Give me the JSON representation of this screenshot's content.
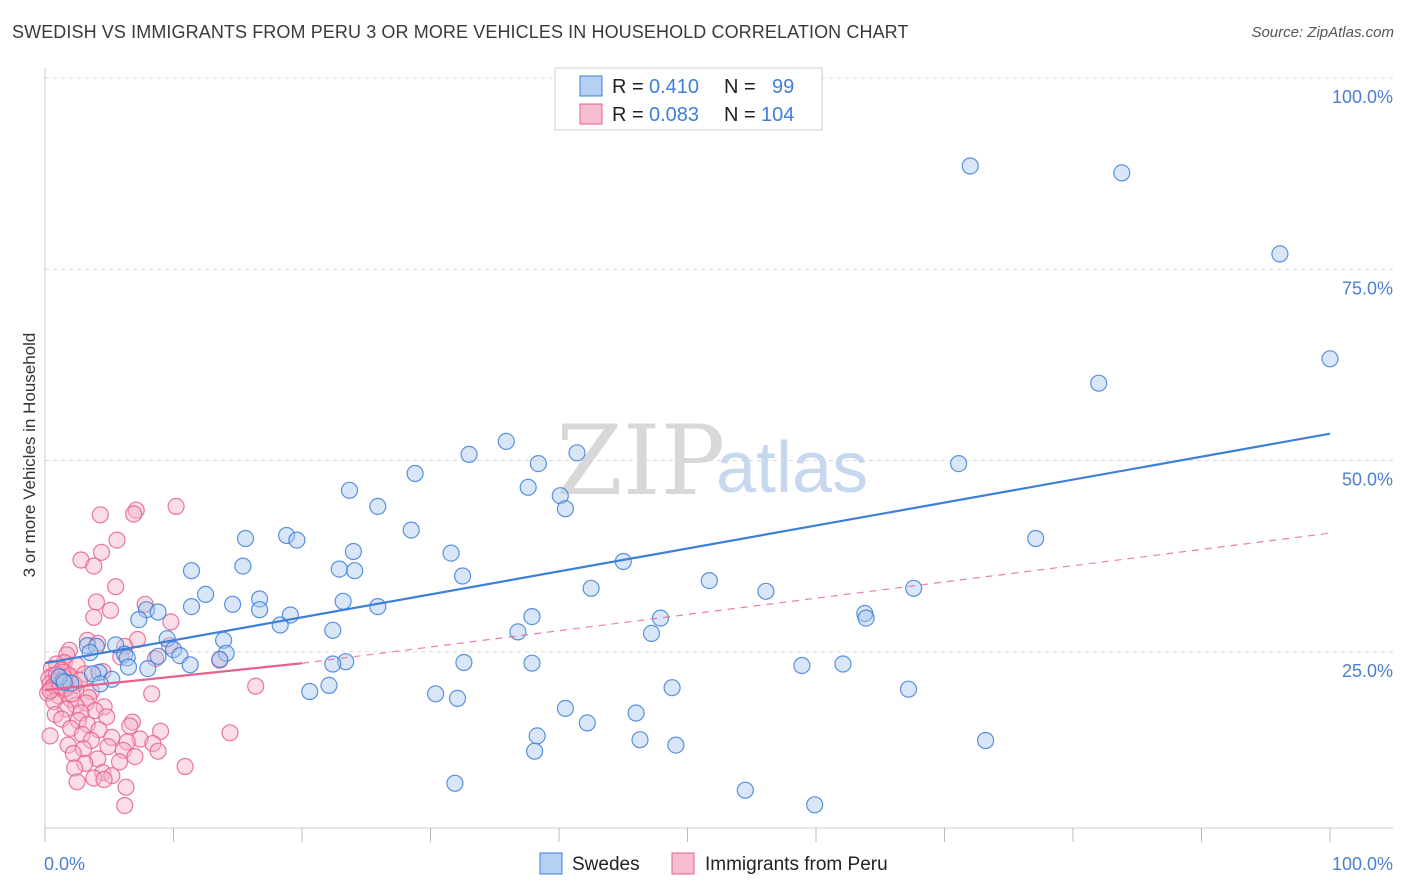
{
  "title": "SWEDISH VS IMMIGRANTS FROM PERU 3 OR MORE VEHICLES IN HOUSEHOLD CORRELATION CHART",
  "source": "Source: ZipAtlas.com",
  "watermark": {
    "zip": "ZIP",
    "atlas": "atlas"
  },
  "colors": {
    "blue": "#3d7fd9",
    "blue_fill": "#a9c8ee",
    "pink": "#e8608c",
    "pink_fill": "#f4b3c8",
    "grid": "#d9d9d9"
  },
  "legend": {
    "rows": [
      {
        "r_label": "R =",
        "r_value": "0.410",
        "n_label": "N =",
        "n_value": "99"
      },
      {
        "r_label": "R =",
        "r_value": "0.083",
        "n_label": "N =",
        "n_value": "104"
      }
    ]
  },
  "bottom_legend": [
    "Swedes",
    "Immigrants from Peru"
  ],
  "chart_data": {
    "type": "scatter",
    "xlabel": "",
    "ylabel": "3 or more Vehicles in Household",
    "xlim": [
      0,
      100
    ],
    "ylim": [
      0,
      100
    ],
    "x_tick_labels": [
      "0.0%",
      "100.0%"
    ],
    "y_tick_labels": [
      "25.0%",
      "50.0%",
      "75.0%",
      "100.0%"
    ],
    "y_ticks": [
      25,
      50,
      75,
      100
    ],
    "series": [
      {
        "name": "Swedes",
        "color": "#3d7fd9",
        "trend": {
          "x": [
            0,
            100
          ],
          "y": [
            23.5,
            53.5
          ],
          "style": "solid"
        },
        "points": [
          [
            72.0,
            88.5
          ],
          [
            83.8,
            87.6
          ],
          [
            96.1,
            77.0
          ],
          [
            100,
            63.3
          ],
          [
            82.0,
            60.1
          ],
          [
            35.9,
            52.5
          ],
          [
            33.0,
            50.8
          ],
          [
            41.4,
            51.0
          ],
          [
            38.4,
            49.6
          ],
          [
            71.1,
            49.6
          ],
          [
            28.8,
            48.3
          ],
          [
            37.6,
            46.5
          ],
          [
            23.7,
            46.1
          ],
          [
            40.1,
            45.4
          ],
          [
            25.9,
            44.0
          ],
          [
            40.5,
            43.7
          ],
          [
            28.5,
            40.9
          ],
          [
            18.8,
            40.2
          ],
          [
            19.6,
            39.6
          ],
          [
            24.0,
            38.1
          ],
          [
            77.1,
            39.8
          ],
          [
            15.6,
            39.8
          ],
          [
            31.6,
            37.9
          ],
          [
            45.0,
            36.8
          ],
          [
            15.4,
            36.2
          ],
          [
            22.9,
            35.8
          ],
          [
            11.4,
            35.6
          ],
          [
            24.1,
            35.6
          ],
          [
            32.5,
            34.9
          ],
          [
            51.7,
            34.3
          ],
          [
            67.6,
            33.3
          ],
          [
            42.5,
            33.3
          ],
          [
            56.1,
            32.9
          ],
          [
            12.5,
            32.5
          ],
          [
            16.7,
            31.9
          ],
          [
            23.2,
            31.6
          ],
          [
            14.6,
            31.2
          ],
          [
            25.9,
            30.9
          ],
          [
            11.4,
            30.9
          ],
          [
            16.7,
            30.5
          ],
          [
            7.9,
            30.5
          ],
          [
            8.8,
            30.2
          ],
          [
            19.1,
            29.8
          ],
          [
            63.8,
            30.0
          ],
          [
            63.9,
            29.4
          ],
          [
            37.9,
            29.6
          ],
          [
            47.9,
            29.4
          ],
          [
            7.3,
            29.2
          ],
          [
            18.3,
            28.5
          ],
          [
            22.4,
            27.8
          ],
          [
            36.8,
            27.6
          ],
          [
            47.2,
            27.4
          ],
          [
            13.9,
            26.5
          ],
          [
            9.5,
            26.7
          ],
          [
            5.5,
            25.9
          ],
          [
            3.3,
            25.8
          ],
          [
            4.0,
            25.7
          ],
          [
            10.0,
            25.3
          ],
          [
            3.5,
            24.9
          ],
          [
            14.1,
            24.8
          ],
          [
            6.2,
            24.7
          ],
          [
            10.5,
            24.5
          ],
          [
            8.8,
            24.4
          ],
          [
            6.4,
            24.2
          ],
          [
            13.6,
            24.0
          ],
          [
            23.4,
            23.7
          ],
          [
            22.4,
            23.4
          ],
          [
            32.6,
            23.6
          ],
          [
            37.9,
            23.5
          ],
          [
            11.3,
            23.3
          ],
          [
            62.1,
            23.4
          ],
          [
            58.9,
            23.2
          ],
          [
            6.5,
            23.0
          ],
          [
            8.0,
            22.8
          ],
          [
            4.2,
            22.3
          ],
          [
            1.4,
            21.2
          ],
          [
            2.0,
            20.9
          ],
          [
            3.7,
            22.1
          ],
          [
            1.1,
            21.7
          ],
          [
            1.5,
            21.0
          ],
          [
            5.2,
            21.4
          ],
          [
            4.3,
            20.8
          ],
          [
            22.1,
            20.6
          ],
          [
            48.8,
            20.3
          ],
          [
            67.2,
            20.1
          ],
          [
            20.6,
            19.8
          ],
          [
            30.4,
            19.5
          ],
          [
            32.1,
            18.9
          ],
          [
            40.5,
            17.6
          ],
          [
            46.0,
            17.0
          ],
          [
            42.2,
            15.7
          ],
          [
            38.3,
            14.0
          ],
          [
            46.3,
            13.5
          ],
          [
            49.1,
            12.8
          ],
          [
            73.2,
            13.4
          ],
          [
            38.1,
            12.0
          ],
          [
            31.9,
            7.8
          ],
          [
            59.9,
            5.0
          ],
          [
            54.5,
            6.9
          ]
        ]
      },
      {
        "name": "Immigrants from Peru",
        "color": "#e8608c",
        "trend": {
          "x": [
            0,
            20
          ],
          "y": [
            20.0,
            23.5
          ],
          "style": "solid"
        },
        "trend_extension": {
          "x": [
            20,
            100
          ],
          "y": [
            23.5,
            40.5
          ],
          "style": "dashed"
        },
        "points": [
          [
            10.2,
            44.0
          ],
          [
            7.1,
            43.5
          ],
          [
            6.9,
            43.0
          ],
          [
            4.3,
            42.9
          ],
          [
            5.6,
            39.6
          ],
          [
            4.4,
            38.0
          ],
          [
            2.8,
            37.0
          ],
          [
            3.8,
            36.2
          ],
          [
            5.5,
            33.5
          ],
          [
            4.0,
            31.5
          ],
          [
            7.8,
            31.2
          ],
          [
            5.1,
            30.4
          ],
          [
            3.8,
            29.5
          ],
          [
            9.8,
            28.9
          ],
          [
            3.3,
            26.5
          ],
          [
            7.2,
            26.6
          ],
          [
            4.1,
            26.1
          ],
          [
            9.7,
            25.8
          ],
          [
            6.2,
            25.7
          ],
          [
            1.9,
            25.2
          ],
          [
            1.7,
            24.6
          ],
          [
            5.9,
            24.3
          ],
          [
            8.6,
            24.1
          ],
          [
            13.6,
            23.9
          ],
          [
            1.5,
            23.6
          ],
          [
            0.9,
            23.4
          ],
          [
            2.5,
            23.2
          ],
          [
            0.5,
            22.8
          ],
          [
            1.3,
            22.6
          ],
          [
            4.5,
            22.4
          ],
          [
            3.1,
            22.1
          ],
          [
            0.6,
            21.9
          ],
          [
            1.9,
            21.7
          ],
          [
            0.3,
            21.5
          ],
          [
            1.0,
            21.3
          ],
          [
            1.7,
            21.0
          ],
          [
            0.4,
            20.8
          ],
          [
            2.3,
            20.6
          ],
          [
            0.9,
            20.4
          ],
          [
            0.5,
            20.2
          ],
          [
            1.4,
            20.0
          ],
          [
            3.6,
            19.8
          ],
          [
            0.2,
            19.6
          ],
          [
            8.3,
            19.5
          ],
          [
            16.4,
            20.5
          ],
          [
            1.1,
            19.2
          ],
          [
            3.4,
            19.0
          ],
          [
            2.0,
            18.8
          ],
          [
            0.7,
            18.5
          ],
          [
            3.2,
            18.3
          ],
          [
            2.4,
            18.0
          ],
          [
            4.6,
            17.8
          ],
          [
            1.6,
            17.5
          ],
          [
            3.9,
            17.3
          ],
          [
            2.8,
            17.0
          ],
          [
            0.8,
            16.8
          ],
          [
            4.8,
            16.5
          ],
          [
            1.3,
            16.2
          ],
          [
            2.6,
            16.0
          ],
          [
            6.8,
            15.8
          ],
          [
            3.3,
            15.5
          ],
          [
            6.6,
            15.3
          ],
          [
            2.0,
            15.0
          ],
          [
            4.2,
            14.8
          ],
          [
            9.0,
            14.6
          ],
          [
            14.4,
            14.4
          ],
          [
            2.9,
            14.2
          ],
          [
            0.4,
            14.0
          ],
          [
            5.2,
            13.8
          ],
          [
            7.4,
            13.6
          ],
          [
            3.6,
            13.4
          ],
          [
            6.4,
            13.2
          ],
          [
            8.4,
            13.0
          ],
          [
            1.8,
            12.8
          ],
          [
            4.9,
            12.6
          ],
          [
            3.0,
            12.3
          ],
          [
            6.1,
            12.1
          ],
          [
            8.8,
            12.0
          ],
          [
            2.2,
            11.7
          ],
          [
            7.0,
            11.3
          ],
          [
            4.1,
            11.0
          ],
          [
            5.8,
            10.6
          ],
          [
            3.1,
            10.4
          ],
          [
            10.9,
            10.0
          ],
          [
            2.3,
            9.8
          ],
          [
            4.5,
            9.2
          ],
          [
            5.2,
            8.8
          ],
          [
            3.8,
            8.5
          ],
          [
            4.6,
            8.3
          ],
          [
            2.5,
            8.0
          ],
          [
            1.4,
            22.3
          ],
          [
            1.9,
            21.9
          ],
          [
            1.0,
            21.1
          ],
          [
            0.7,
            20.6
          ],
          [
            2.2,
            20.9
          ],
          [
            1.5,
            21.6
          ],
          [
            0.4,
            19.9
          ],
          [
            1.2,
            20.5
          ],
          [
            2.7,
            21.3
          ],
          [
            0.9,
            22.0
          ],
          [
            1.6,
            20.2
          ],
          [
            2.1,
            19.5
          ],
          [
            6.3,
            7.3
          ],
          [
            6.2,
            4.9
          ]
        ]
      }
    ]
  }
}
